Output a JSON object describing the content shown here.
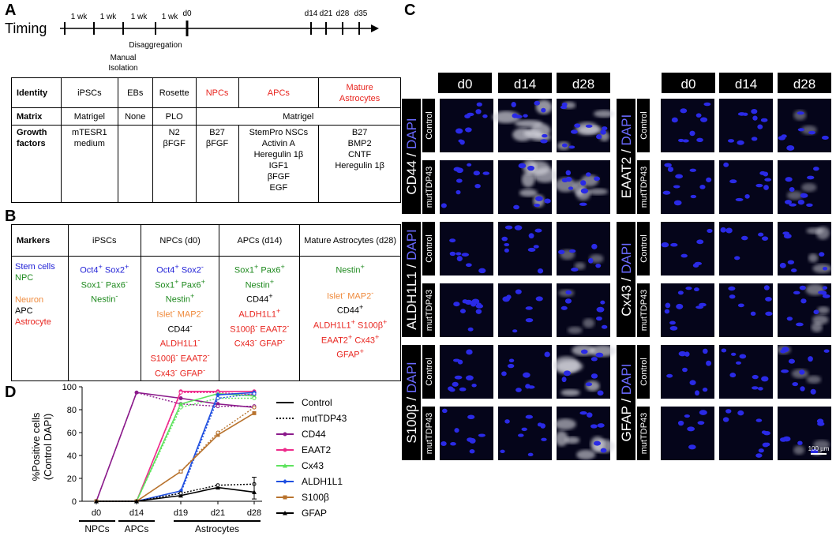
{
  "panels": {
    "A": "A",
    "B": "B",
    "C": "C",
    "D": "D"
  },
  "timing": {
    "title": "Timing",
    "week_labels": [
      "1 wk",
      "1 wk",
      "1 wk",
      "1 wk"
    ],
    "days": [
      "d0",
      "d14",
      "d21",
      "d28",
      "d35"
    ],
    "disaggregation": "Disaggregation",
    "manual_isolation": [
      "Manual",
      "Isolation"
    ]
  },
  "tableA": {
    "identity_label": "Identity",
    "matrix_label": "Matrix",
    "growth_label": [
      "Growth",
      "factors"
    ],
    "identity": [
      "iPSCs",
      "EBs",
      "Rosette",
      "NPCs",
      "APCs",
      [
        "Mature",
        "Astrocytes"
      ]
    ],
    "matrix": [
      "Matrigel",
      "None",
      "PLO",
      "Matrigel"
    ],
    "growth": [
      [
        "mTESR1",
        "medium"
      ],
      [],
      [
        "N2",
        "βFGF"
      ],
      [
        "B27",
        "βFGF"
      ],
      [
        "StemPro NSCs",
        "Activin A",
        "Heregulin 1β",
        "IGF1",
        "βFGF",
        "EGF"
      ],
      [
        "B27",
        "BMP2",
        "CNTF",
        "Heregulin 1β"
      ]
    ]
  },
  "tableB": {
    "markers_label": "Markers",
    "headers": [
      "iPSCs",
      "NPCs (d0)",
      "APCs (d14)",
      "Mature Astrocytes (d28)"
    ],
    "legend": [
      "Stem cells",
      "NPC",
      "Neuron",
      "APC",
      "Astrocyte"
    ],
    "ipsc": {
      "l1a": "Oct4",
      "l1b": "Sox2",
      "l2a": "Sox1",
      "l2b": "Pax6",
      "l3": "Nestin"
    },
    "npc": {
      "l1a": "Oct4",
      "l1b": "Sox2",
      "l2a": "Sox1",
      "l2b": "Pax6",
      "l3": "Nestin",
      "l4a": "Islet",
      "l4b": "MAP2",
      "l5": "CD44",
      "l6": "ALDH1L1",
      "l7a": "S100β",
      "l7b": "EAAT2",
      "l8a": "Cx43",
      "l8b": "GFAP"
    },
    "apc": {
      "l1a": "Sox1",
      "l1b": "Pax6",
      "l2": "Nestin",
      "l3": "CD44",
      "l4": "ALDH1L1",
      "l5a": "S100β",
      "l5b": "EAAT2",
      "l6a": "Cx43",
      "l6b": "GFAP"
    },
    "ast": {
      "l1": "Nestin",
      "l2a": "Islet",
      "l2b": "MAP2",
      "l3": "CD44",
      "l4a": "ALDH1L1",
      "l4b": "S100β",
      "l5a": "EAAT2",
      "l5b": "Cx43",
      "l6": "GFAP"
    },
    "sup": {
      "plus": "+",
      "minus": "-"
    }
  },
  "panelC": {
    "days": [
      "d0",
      "d14",
      "d28"
    ],
    "conditions": [
      "Control",
      "mutTDP43"
    ],
    "left_markers": [
      "CD44",
      "ALDH1L1",
      "S100β"
    ],
    "right_markers": [
      "EAAT2",
      "Cx43",
      "GFAP"
    ],
    "dapi": "DAPI",
    "slash": " / ",
    "scale_bar": "100 µm",
    "colors": {
      "tile_bg": "#05051a",
      "nuclei": "#2a2ae6",
      "marker": "#d8d8e0",
      "header_bg": "#000000"
    }
  },
  "chart_data": {
    "type": "line",
    "ylabel": [
      "%Positive cells",
      "(Control DAPI)"
    ],
    "x": [
      "d0",
      "d14",
      "d19",
      "d21",
      "d28"
    ],
    "ylim": [
      0,
      100
    ],
    "yticks": [
      0,
      20,
      40,
      60,
      80,
      100
    ],
    "stage_labels": [
      "NPCs",
      "APCs",
      "Astrocytes"
    ],
    "legend_styles": [
      "Control",
      "mutTDP43"
    ],
    "series": [
      {
        "name": "CD44",
        "color": "#8b1a8b",
        "marker": "circle",
        "control": [
          0,
          95,
          90,
          85,
          82
        ],
        "mut": [
          0,
          95,
          85,
          83,
          83
        ]
      },
      {
        "name": "EAAT2",
        "color": "#ee2b8b",
        "marker": "circle",
        "control": [
          0,
          0,
          96,
          96,
          96
        ],
        "mut": [
          0,
          0,
          95,
          95,
          93
        ]
      },
      {
        "name": "Cx43",
        "color": "#5ee35e",
        "marker": "triangle",
        "control": [
          0,
          0,
          85,
          94,
          92
        ],
        "mut": [
          0,
          0,
          82,
          90,
          90
        ]
      },
      {
        "name": "ALDH1L1",
        "color": "#1f4fe0",
        "marker": "diamond",
        "control": [
          0,
          0,
          9,
          93,
          95
        ],
        "mut": [
          0,
          0,
          7,
          90,
          94
        ]
      },
      {
        "name": "S100β",
        "color": "#b8732e",
        "marker": "square",
        "control": [
          0,
          0,
          26,
          58,
          77
        ],
        "mut": [
          0,
          0,
          26,
          60,
          82
        ]
      },
      {
        "name": "GFAP",
        "color": "#000000",
        "marker": "triangle",
        "control": [
          0,
          0,
          5,
          12,
          8
        ],
        "mut": [
          0,
          0,
          7,
          14,
          15
        ]
      }
    ]
  }
}
